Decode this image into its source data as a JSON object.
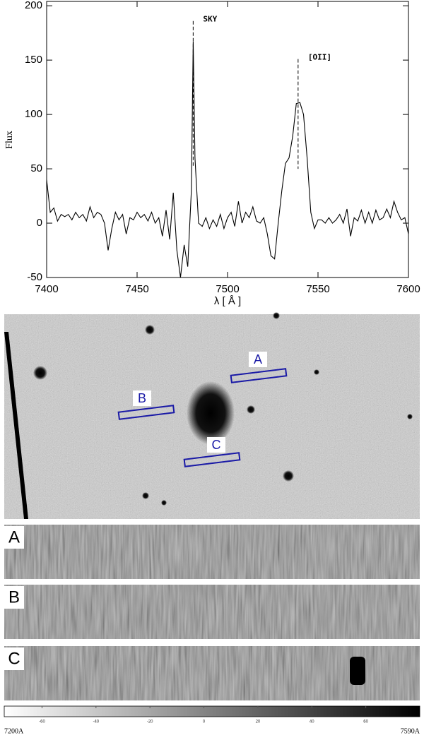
{
  "chart_data": {
    "type": "line",
    "x_label": "λ [ Å ]",
    "y_label": "Flux",
    "x": [
      7400,
      7402,
      7404,
      7406,
      7408,
      7410,
      7412,
      7414,
      7416,
      7418,
      7420,
      7422,
      7424,
      7426,
      7428,
      7430,
      7432,
      7434,
      7436,
      7438,
      7440,
      7442,
      7444,
      7446,
      7448,
      7450,
      7452,
      7454,
      7456,
      7458,
      7460,
      7462,
      7464,
      7466,
      7468,
      7470,
      7472,
      7474,
      7476,
      7478,
      7479,
      7480,
      7481,
      7482,
      7484,
      7486,
      7488,
      7490,
      7492,
      7494,
      7496,
      7498,
      7500,
      7502,
      7504,
      7506,
      7508,
      7510,
      7512,
      7514,
      7516,
      7518,
      7520,
      7522,
      7524,
      7526,
      7528,
      7530,
      7532,
      7534,
      7536,
      7538,
      7540,
      7542,
      7544,
      7546,
      7548,
      7550,
      7552,
      7554,
      7556,
      7558,
      7560,
      7562,
      7564,
      7566,
      7568,
      7570,
      7572,
      7574,
      7576,
      7578,
      7580,
      7582,
      7584,
      7586,
      7588,
      7590,
      7592,
      7594,
      7596,
      7598,
      7600
    ],
    "series": [
      {
        "color": "#000000",
        "values": [
          40,
          10,
          14,
          2,
          8,
          6,
          8,
          3,
          10,
          5,
          8,
          2,
          15,
          5,
          10,
          8,
          0,
          -25,
          -5,
          10,
          3,
          8,
          -10,
          5,
          3,
          10,
          5,
          8,
          2,
          10,
          0,
          5,
          -12,
          12,
          -15,
          28,
          -25,
          -50,
          -20,
          -40,
          -5,
          30,
          167,
          60,
          0,
          -3,
          5,
          -5,
          3,
          -3,
          8,
          -5,
          5,
          10,
          -3,
          20,
          0,
          10,
          5,
          15,
          2,
          0,
          5,
          -10,
          -30,
          -33,
          0,
          30,
          55,
          60,
          80,
          110,
          111,
          100,
          60,
          10,
          -5,
          3,
          3,
          0,
          5,
          0,
          3,
          8,
          0,
          13,
          -12,
          5,
          2,
          12,
          0,
          10,
          0,
          12,
          3,
          5,
          13,
          5,
          20,
          10,
          3,
          5,
          -10
        ]
      }
    ],
    "xlim": [
      7400,
      7600
    ],
    "ylim": [
      -50,
      204
    ],
    "xticks": [
      7400,
      7450,
      7500,
      7550,
      7600
    ],
    "yticks": [
      -50,
      0,
      50,
      100,
      150,
      200
    ],
    "annotations": [
      {
        "text": "SKY",
        "x": 7481,
        "y_top": 186,
        "y_bottom": 51
      },
      {
        "text": "[OII]",
        "x": 7539,
        "y_top": 151,
        "y_bottom": 50
      }
    ]
  },
  "image": {
    "slits": [
      "A",
      "B",
      "C"
    ]
  },
  "spectra2d": {
    "labels": [
      "A",
      "B",
      "C"
    ]
  },
  "colorbar": {
    "lim": [
      -74,
      80
    ],
    "ticks": [
      -60,
      -40,
      -20,
      0,
      20,
      40,
      60
    ],
    "left_label": "7200A",
    "right_label": "7590A"
  }
}
